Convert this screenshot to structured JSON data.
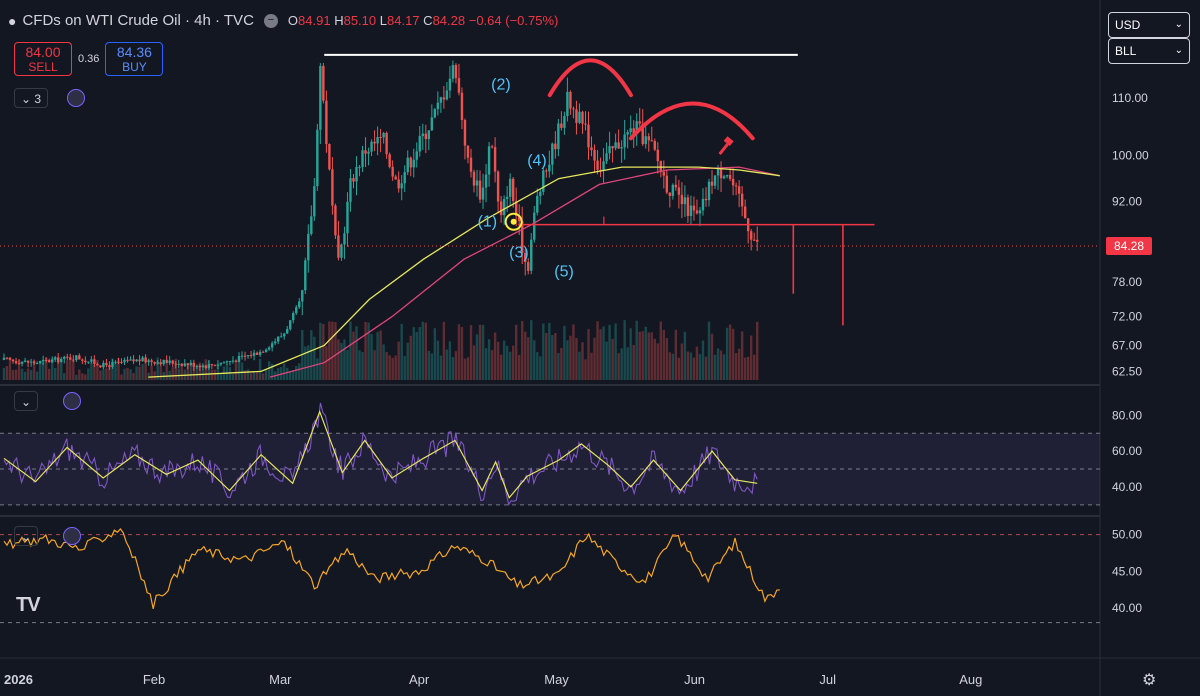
{
  "header": {
    "symbol": "CFDs on WTI Crude Oil · 4h · TVC",
    "ohlc": {
      "o_label": "O",
      "o": "84.91",
      "h_label": "H",
      "h": "85.10",
      "l_label": "L",
      "l": "84.17",
      "c_label": "C",
      "c": "84.28",
      "change": "−0.64 (−0.75%)"
    },
    "minus_glyph": "−"
  },
  "trade": {
    "sell_price": "84.00",
    "sell_label": "SELL",
    "spread": "0.36",
    "buy_price": "84.36",
    "buy_label": "BUY"
  },
  "controls": {
    "indicators_count": "3",
    "currency": "USD",
    "unit": "BLL",
    "chevron": "⌄",
    "logo": "TV",
    "gear": "⚙",
    "collapse": "⌄"
  },
  "colors": {
    "background": "#131722",
    "up": "#26a69a",
    "down": "#ef5350",
    "ma_fast": "#e6e65c",
    "ma_slow": "#e0457a",
    "rsi": "#7e57c2",
    "rsi_ma": "#e6e65c",
    "osc": "#f5a623",
    "annotation": "#f23645",
    "wave_label": "#4fc3f7",
    "grid": "#2a2e39"
  },
  "icons": [
    "tradingview-logo-icon",
    "gear-icon",
    "chevron-down-icon",
    "indicator-settings-icon"
  ],
  "chart_data": [
    {
      "type": "candlestick",
      "ylim": [
        61,
        118
      ],
      "yticks": [
        110.0,
        100.0,
        92.0,
        84.28,
        78.0,
        72.0,
        67.0,
        62.5
      ],
      "ytick_labels": [
        "110.00",
        "100.00",
        "92.00",
        "84.28",
        "78.00",
        "72.00",
        "67.00",
        "62.50"
      ],
      "last_price": 84.28,
      "last_price_label": "84.28",
      "x_labels": [
        "2026",
        "Feb",
        "Mar",
        "Apr",
        "May",
        "Jun",
        "Jul",
        "Aug"
      ],
      "price_path": [
        [
          "2025-12-29",
          64.5
        ],
        [
          "2026-01-05",
          64.0
        ],
        [
          "2026-01-14",
          65.0
        ],
        [
          "2026-01-20",
          63.5
        ],
        [
          "2026-01-28",
          64.5
        ],
        [
          "2026-02-05",
          64.0
        ],
        [
          "2026-02-12",
          63.5
        ],
        [
          "2026-02-18",
          64.5
        ],
        [
          "2026-02-24",
          66.0
        ],
        [
          "2026-03-01",
          69.0
        ],
        [
          "2026-03-05",
          75.0
        ],
        [
          "2026-03-08",
          96.0
        ],
        [
          "2026-03-09",
          117.0
        ],
        [
          "2026-03-11",
          98.0
        ],
        [
          "2026-03-13",
          80.0
        ],
        [
          "2026-03-16",
          96.0
        ],
        [
          "2026-03-19",
          101.0
        ],
        [
          "2026-03-23",
          103.0
        ],
        [
          "2026-03-26",
          95.0
        ],
        [
          "2026-03-31",
          102.0
        ],
        [
          "2026-04-04",
          108.0
        ],
        [
          "2026-04-08",
          116.0
        ],
        [
          "2026-04-11",
          98.0
        ],
        [
          "2026-04-14",
          93.0
        ],
        [
          "2026-04-16",
          104.0
        ],
        [
          "2026-04-18",
          88.0
        ],
        [
          "2026-04-20",
          96.0
        ],
        [
          "2026-04-24",
          80.0
        ],
        [
          "2026-04-26",
          92.0
        ],
        [
          "2026-04-30",
          102.0
        ],
        [
          "2026-05-03",
          110.0
        ],
        [
          "2026-05-07",
          104.0
        ],
        [
          "2026-05-10",
          98.0
        ],
        [
          "2026-05-14",
          102.0
        ],
        [
          "2026-05-18",
          105.0
        ],
        [
          "2026-05-22",
          101.0
        ],
        [
          "2026-05-25",
          95.0
        ],
        [
          "2026-05-28",
          92.0
        ],
        [
          "2026-06-01",
          89.0
        ],
        [
          "2026-06-04",
          96.0
        ],
        [
          "2026-06-07",
          98.0
        ],
        [
          "2026-06-10",
          92.0
        ],
        [
          "2026-06-12",
          88.0
        ],
        [
          "2026-06-14",
          84.28
        ]
      ],
      "ma_fast": [
        [
          "2026-01-30",
          61.5
        ],
        [
          "2026-02-24",
          62.5
        ],
        [
          "2026-03-10",
          67.0
        ],
        [
          "2026-03-20",
          75.0
        ],
        [
          "2026-04-01",
          82.0
        ],
        [
          "2026-04-15",
          89.0
        ],
        [
          "2026-05-01",
          96.0
        ],
        [
          "2026-05-15",
          98.0
        ],
        [
          "2026-06-01",
          98.0
        ],
        [
          "2026-06-10",
          97.5
        ],
        [
          "2026-06-19",
          96.5
        ]
      ],
      "ma_slow": [
        [
          "2026-02-26",
          61.5
        ],
        [
          "2026-03-10",
          64.0
        ],
        [
          "2026-03-25",
          72.0
        ],
        [
          "2026-04-10",
          82.0
        ],
        [
          "2026-04-25",
          88.0
        ],
        [
          "2026-05-10",
          95.0
        ],
        [
          "2026-05-25",
          97.5
        ],
        [
          "2026-06-10",
          98.0
        ],
        [
          "2026-06-19",
          96.5
        ]
      ],
      "annotations": {
        "resistance": {
          "from": "2026-03-10",
          "to": "2026-06-23",
          "price": 117.5
        },
        "neckline": {
          "from": "2026-04-22",
          "to": "2026-07-10",
          "price": 88.0
        },
        "neckline_tick": {
          "date": "2026-05-11",
          "price": 88.0
        },
        "targets": [
          {
            "date": "2026-06-22",
            "from": 88.0,
            "to": 76.0
          },
          {
            "date": "2026-07-03",
            "from": 88.0,
            "to": 70.5
          }
        ],
        "arcs": [
          {
            "from": "2026-04-29",
            "peak": "2026-05-08",
            "to": "2026-05-17",
            "top": 120.5,
            "base": 110.5
          },
          {
            "from": "2026-05-17",
            "peak": "2026-05-31",
            "to": "2026-06-13",
            "top": 113.0,
            "base": 103.0
          }
        ],
        "hammer": {
          "date": "2026-06-07",
          "price": 102.0
        },
        "current_marker": {
          "date": "2026-04-21",
          "price": 88.5
        },
        "wave_labels": [
          {
            "text": "(1)",
            "date": "2026-04-13",
            "price": 87.7
          },
          {
            "text": "(2)",
            "date": "2026-04-16",
            "price": 111.5
          },
          {
            "text": "(3)",
            "date": "2026-04-20",
            "price": 82.3
          },
          {
            "text": "(4)",
            "date": "2026-04-24",
            "price": 98.3
          },
          {
            "text": "(5)",
            "date": "2026-04-30",
            "price": 79.0
          }
        ]
      }
    },
    {
      "type": "line",
      "name": "",
      "ylim": [
        26,
        93
      ],
      "yticks": [
        80.0,
        60.0,
        40.0
      ],
      "ytick_labels": [
        "80.00",
        "60.00",
        "40.00"
      ],
      "band": [
        30,
        70
      ],
      "midline": 50,
      "series_path": [
        [
          "2025-12-29",
          56
        ],
        [
          "2026-01-05",
          43
        ],
        [
          "2026-01-12",
          62
        ],
        [
          "2026-01-20",
          45
        ],
        [
          "2026-01-27",
          58
        ],
        [
          "2026-02-03",
          47
        ],
        [
          "2026-02-10",
          55
        ],
        [
          "2026-02-17",
          38
        ],
        [
          "2026-02-24",
          58
        ],
        [
          "2026-03-03",
          42
        ],
        [
          "2026-03-09",
          82
        ],
        [
          "2026-03-14",
          48
        ],
        [
          "2026-03-19",
          66
        ],
        [
          "2026-03-25",
          45
        ],
        [
          "2026-04-01",
          56
        ],
        [
          "2026-04-08",
          66
        ],
        [
          "2026-04-14",
          38
        ],
        [
          "2026-04-17",
          54
        ],
        [
          "2026-04-20",
          34
        ],
        [
          "2026-04-24",
          46
        ],
        [
          "2026-05-01",
          55
        ],
        [
          "2026-05-06",
          64
        ],
        [
          "2026-05-12",
          52
        ],
        [
          "2026-05-17",
          40
        ],
        [
          "2026-05-22",
          55
        ],
        [
          "2026-05-28",
          38
        ],
        [
          "2026-06-04",
          60
        ],
        [
          "2026-06-09",
          44
        ],
        [
          "2026-06-14",
          42
        ]
      ]
    },
    {
      "type": "line",
      "name": "",
      "ylim": [
        37,
        52
      ],
      "yticks": [
        50.0,
        45.0,
        40.0
      ],
      "ytick_labels": [
        "50.00",
        "45.00",
        "40.00"
      ],
      "series_path": [
        [
          "2025-12-29",
          48.5
        ],
        [
          "2026-01-07",
          49.5
        ],
        [
          "2026-01-15",
          48.0
        ],
        [
          "2026-01-24",
          51.0
        ],
        [
          "2026-01-31",
          40.5
        ],
        [
          "2026-02-10",
          48.0
        ],
        [
          "2026-02-20",
          46.5
        ],
        [
          "2026-03-01",
          49.0
        ],
        [
          "2026-03-08",
          43.0
        ],
        [
          "2026-03-15",
          48.0
        ],
        [
          "2026-03-21",
          44.0
        ],
        [
          "2026-03-31",
          45.0
        ],
        [
          "2026-04-08",
          48.5
        ],
        [
          "2026-04-15",
          46.5
        ],
        [
          "2026-04-22",
          43.0
        ],
        [
          "2026-05-01",
          44.5
        ],
        [
          "2026-05-07",
          50.0
        ],
        [
          "2026-05-14",
          46.0
        ],
        [
          "2026-05-20",
          43.5
        ],
        [
          "2026-05-27",
          50.0
        ],
        [
          "2026-06-03",
          44.0
        ],
        [
          "2026-06-09",
          49.0
        ],
        [
          "2026-06-16",
          41.0
        ],
        [
          "2026-06-19",
          43.0
        ]
      ]
    }
  ]
}
